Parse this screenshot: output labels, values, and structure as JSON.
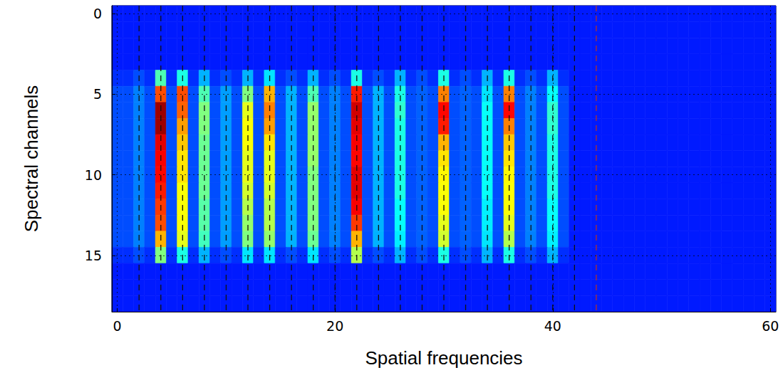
{
  "chart_data": {
    "type": "heatmap",
    "x_label": "Spatial frequencies",
    "y_label": "Spectral channels",
    "xlim": [
      -0.5,
      60.5
    ],
    "xticks": [
      0,
      20,
      40,
      60
    ],
    "ylim": [
      -0.5,
      18.5
    ],
    "yticks": [
      0,
      5,
      10,
      15
    ],
    "grid": true,
    "zlim": [
      0,
      1
    ],
    "x": [
      0,
      1,
      2,
      3,
      4,
      5,
      6,
      7,
      8,
      9,
      10,
      11,
      12,
      13,
      14,
      15,
      16,
      17,
      18,
      19,
      20,
      21,
      22,
      23,
      24,
      25,
      26,
      27,
      28,
      29,
      30,
      31,
      32,
      33,
      34,
      35,
      36,
      37,
      38,
      39,
      40,
      41,
      42,
      43,
      44,
      45,
      46,
      47,
      48,
      49,
      50,
      51,
      52,
      53,
      54,
      55,
      56,
      57,
      58,
      59,
      60
    ],
    "y": [
      0,
      1,
      2,
      3,
      4,
      5,
      6,
      7,
      8,
      9,
      10,
      11,
      12,
      13,
      14,
      15,
      16,
      17,
      18
    ],
    "cells": [
      [
        0.15,
        0.15,
        0.15,
        0.15,
        0.15,
        0.15,
        0.15,
        0.15,
        0.15,
        0.15,
        0.15,
        0.15,
        0.15,
        0.15,
        0.15,
        0.15,
        0.15,
        0.15,
        0.15,
        0.15,
        0.15,
        0.15,
        0.15,
        0.15,
        0.15,
        0.15,
        0.15,
        0.15,
        0.15,
        0.15,
        0.15,
        0.15,
        0.15,
        0.15,
        0.15,
        0.15,
        0.15,
        0.15,
        0.15,
        0.15,
        0.15,
        0.15,
        0.15,
        0.15,
        0.15,
        0.15,
        0.15,
        0.15,
        0.15,
        0.15,
        0.15,
        0.15,
        0.15,
        0.15,
        0.15,
        0.15,
        0.15,
        0.15,
        0.15,
        0.15,
        0.15
      ],
      [
        0.15,
        0.15,
        0.15,
        0.15,
        0.15,
        0.15,
        0.15,
        0.15,
        0.15,
        0.15,
        0.15,
        0.15,
        0.15,
        0.15,
        0.15,
        0.15,
        0.15,
        0.15,
        0.15,
        0.15,
        0.15,
        0.15,
        0.15,
        0.15,
        0.15,
        0.15,
        0.15,
        0.15,
        0.15,
        0.15,
        0.15,
        0.15,
        0.15,
        0.15,
        0.15,
        0.15,
        0.15,
        0.15,
        0.15,
        0.15,
        0.15,
        0.15,
        0.15,
        0.15,
        0.15,
        0.15,
        0.15,
        0.15,
        0.15,
        0.15,
        0.15,
        0.15,
        0.15,
        0.15,
        0.15,
        0.15,
        0.15,
        0.15,
        0.15,
        0.15,
        0.15
      ],
      [
        0.15,
        0.15,
        0.15,
        0.15,
        0.15,
        0.15,
        0.15,
        0.15,
        0.15,
        0.15,
        0.15,
        0.15,
        0.15,
        0.15,
        0.15,
        0.15,
        0.15,
        0.15,
        0.15,
        0.15,
        0.15,
        0.15,
        0.15,
        0.15,
        0.15,
        0.15,
        0.15,
        0.15,
        0.15,
        0.15,
        0.15,
        0.15,
        0.15,
        0.15,
        0.15,
        0.15,
        0.15,
        0.15,
        0.15,
        0.15,
        0.15,
        0.15,
        0.15,
        0.15,
        0.15,
        0.15,
        0.15,
        0.15,
        0.15,
        0.15,
        0.15,
        0.15,
        0.15,
        0.15,
        0.15,
        0.15,
        0.15,
        0.15,
        0.15,
        0.15,
        0.15
      ],
      [
        0.15,
        0.15,
        0.15,
        0.15,
        0.15,
        0.15,
        0.15,
        0.15,
        0.15,
        0.15,
        0.15,
        0.15,
        0.15,
        0.15,
        0.15,
        0.15,
        0.15,
        0.15,
        0.15,
        0.15,
        0.15,
        0.15,
        0.15,
        0.15,
        0.15,
        0.15,
        0.15,
        0.15,
        0.15,
        0.15,
        0.15,
        0.15,
        0.15,
        0.15,
        0.15,
        0.15,
        0.15,
        0.15,
        0.15,
        0.15,
        0.15,
        0.15,
        0.15,
        0.15,
        0.15,
        0.15,
        0.15,
        0.15,
        0.15,
        0.15,
        0.15,
        0.15,
        0.15,
        0.15,
        0.15,
        0.15,
        0.15,
        0.15,
        0.15,
        0.15,
        0.15
      ],
      [
        0.17,
        0.17,
        0.2,
        0.17,
        0.45,
        0.17,
        0.4,
        0.17,
        0.3,
        0.17,
        0.2,
        0.17,
        0.3,
        0.17,
        0.35,
        0.17,
        0.2,
        0.17,
        0.3,
        0.17,
        0.2,
        0.17,
        0.4,
        0.17,
        0.2,
        0.17,
        0.3,
        0.17,
        0.2,
        0.17,
        0.4,
        0.17,
        0.2,
        0.17,
        0.3,
        0.17,
        0.4,
        0.17,
        0.2,
        0.17,
        0.3,
        0.17,
        0.15,
        0.15,
        0.15,
        0.15,
        0.15,
        0.15,
        0.15,
        0.15,
        0.15,
        0.15,
        0.15,
        0.15,
        0.15,
        0.15,
        0.15,
        0.15,
        0.15,
        0.15,
        0.15
      ],
      [
        0.2,
        0.2,
        0.25,
        0.2,
        0.8,
        0.2,
        0.8,
        0.2,
        0.45,
        0.2,
        0.28,
        0.2,
        0.5,
        0.2,
        0.7,
        0.2,
        0.3,
        0.2,
        0.45,
        0.2,
        0.25,
        0.2,
        0.85,
        0.2,
        0.3,
        0.2,
        0.4,
        0.2,
        0.22,
        0.2,
        0.75,
        0.2,
        0.22,
        0.2,
        0.35,
        0.2,
        0.75,
        0.2,
        0.25,
        0.2,
        0.38,
        0.2,
        0.15,
        0.15,
        0.15,
        0.15,
        0.15,
        0.15,
        0.15,
        0.15,
        0.15,
        0.15,
        0.15,
        0.15,
        0.15,
        0.15,
        0.15,
        0.15,
        0.15,
        0.15,
        0.15
      ],
      [
        0.2,
        0.2,
        0.25,
        0.2,
        0.97,
        0.2,
        0.78,
        0.2,
        0.5,
        0.2,
        0.28,
        0.2,
        0.6,
        0.2,
        0.75,
        0.2,
        0.3,
        0.2,
        0.52,
        0.2,
        0.25,
        0.2,
        0.92,
        0.2,
        0.3,
        0.2,
        0.42,
        0.2,
        0.22,
        0.2,
        0.87,
        0.2,
        0.22,
        0.2,
        0.38,
        0.2,
        0.87,
        0.2,
        0.25,
        0.2,
        0.42,
        0.2,
        0.15,
        0.15,
        0.15,
        0.15,
        0.15,
        0.15,
        0.15,
        0.15,
        0.15,
        0.15,
        0.15,
        0.15,
        0.15,
        0.15,
        0.15,
        0.15,
        0.15,
        0.15,
        0.15
      ],
      [
        0.2,
        0.2,
        0.25,
        0.2,
        0.97,
        0.2,
        0.72,
        0.2,
        0.5,
        0.2,
        0.28,
        0.2,
        0.62,
        0.2,
        0.72,
        0.2,
        0.3,
        0.2,
        0.52,
        0.2,
        0.25,
        0.2,
        0.9,
        0.2,
        0.3,
        0.2,
        0.4,
        0.2,
        0.22,
        0.2,
        0.85,
        0.2,
        0.22,
        0.2,
        0.38,
        0.2,
        0.75,
        0.2,
        0.25,
        0.2,
        0.42,
        0.2,
        0.15,
        0.15,
        0.15,
        0.15,
        0.15,
        0.15,
        0.15,
        0.15,
        0.15,
        0.15,
        0.15,
        0.15,
        0.15,
        0.15,
        0.15,
        0.15,
        0.15,
        0.15,
        0.15
      ],
      [
        0.2,
        0.2,
        0.25,
        0.2,
        0.9,
        0.2,
        0.68,
        0.2,
        0.48,
        0.2,
        0.28,
        0.2,
        0.62,
        0.2,
        0.65,
        0.2,
        0.3,
        0.2,
        0.52,
        0.2,
        0.25,
        0.2,
        0.88,
        0.2,
        0.3,
        0.2,
        0.4,
        0.2,
        0.22,
        0.2,
        0.7,
        0.2,
        0.22,
        0.2,
        0.38,
        0.2,
        0.68,
        0.2,
        0.25,
        0.2,
        0.4,
        0.2,
        0.15,
        0.15,
        0.15,
        0.15,
        0.15,
        0.15,
        0.15,
        0.15,
        0.15,
        0.15,
        0.15,
        0.15,
        0.15,
        0.15,
        0.15,
        0.15,
        0.15,
        0.15,
        0.15
      ],
      [
        0.2,
        0.2,
        0.25,
        0.2,
        0.88,
        0.2,
        0.65,
        0.2,
        0.48,
        0.2,
        0.28,
        0.2,
        0.6,
        0.2,
        0.6,
        0.2,
        0.3,
        0.2,
        0.52,
        0.2,
        0.25,
        0.2,
        0.87,
        0.2,
        0.3,
        0.2,
        0.4,
        0.2,
        0.22,
        0.2,
        0.65,
        0.2,
        0.22,
        0.2,
        0.38,
        0.2,
        0.65,
        0.2,
        0.25,
        0.2,
        0.4,
        0.2,
        0.15,
        0.15,
        0.15,
        0.15,
        0.15,
        0.15,
        0.15,
        0.15,
        0.15,
        0.15,
        0.15,
        0.15,
        0.15,
        0.15,
        0.15,
        0.15,
        0.15,
        0.15,
        0.15
      ],
      [
        0.2,
        0.2,
        0.25,
        0.2,
        0.87,
        0.2,
        0.65,
        0.2,
        0.48,
        0.2,
        0.28,
        0.2,
        0.6,
        0.2,
        0.6,
        0.2,
        0.3,
        0.2,
        0.5,
        0.2,
        0.25,
        0.2,
        0.9,
        0.2,
        0.3,
        0.2,
        0.4,
        0.2,
        0.22,
        0.2,
        0.63,
        0.2,
        0.22,
        0.2,
        0.38,
        0.2,
        0.63,
        0.2,
        0.25,
        0.2,
        0.4,
        0.2,
        0.15,
        0.15,
        0.15,
        0.15,
        0.15,
        0.15,
        0.15,
        0.15,
        0.15,
        0.15,
        0.15,
        0.15,
        0.15,
        0.15,
        0.15,
        0.15,
        0.15,
        0.15,
        0.15
      ],
      [
        0.2,
        0.2,
        0.25,
        0.2,
        0.85,
        0.2,
        0.62,
        0.2,
        0.48,
        0.2,
        0.28,
        0.2,
        0.58,
        0.2,
        0.58,
        0.2,
        0.3,
        0.2,
        0.5,
        0.2,
        0.25,
        0.2,
        0.9,
        0.2,
        0.3,
        0.2,
        0.4,
        0.2,
        0.22,
        0.2,
        0.62,
        0.2,
        0.22,
        0.2,
        0.38,
        0.2,
        0.62,
        0.2,
        0.25,
        0.2,
        0.4,
        0.2,
        0.15,
        0.15,
        0.15,
        0.15,
        0.15,
        0.15,
        0.15,
        0.15,
        0.15,
        0.15,
        0.15,
        0.15,
        0.15,
        0.15,
        0.15,
        0.15,
        0.15,
        0.15,
        0.15
      ],
      [
        0.2,
        0.2,
        0.25,
        0.2,
        0.82,
        0.2,
        0.62,
        0.2,
        0.46,
        0.2,
        0.28,
        0.2,
        0.55,
        0.2,
        0.55,
        0.2,
        0.3,
        0.2,
        0.5,
        0.2,
        0.25,
        0.2,
        0.88,
        0.2,
        0.3,
        0.2,
        0.38,
        0.2,
        0.22,
        0.2,
        0.62,
        0.2,
        0.22,
        0.2,
        0.36,
        0.2,
        0.62,
        0.2,
        0.25,
        0.2,
        0.38,
        0.2,
        0.15,
        0.15,
        0.15,
        0.15,
        0.15,
        0.15,
        0.15,
        0.15,
        0.15,
        0.15,
        0.15,
        0.15,
        0.15,
        0.15,
        0.15,
        0.15,
        0.15,
        0.15,
        0.15
      ],
      [
        0.2,
        0.2,
        0.25,
        0.2,
        0.8,
        0.2,
        0.62,
        0.2,
        0.46,
        0.2,
        0.28,
        0.2,
        0.52,
        0.2,
        0.55,
        0.2,
        0.3,
        0.2,
        0.5,
        0.2,
        0.25,
        0.2,
        0.82,
        0.2,
        0.3,
        0.2,
        0.38,
        0.2,
        0.22,
        0.2,
        0.6,
        0.2,
        0.22,
        0.2,
        0.36,
        0.2,
        0.6,
        0.2,
        0.25,
        0.2,
        0.38,
        0.2,
        0.15,
        0.15,
        0.15,
        0.15,
        0.15,
        0.15,
        0.15,
        0.15,
        0.15,
        0.15,
        0.15,
        0.15,
        0.15,
        0.15,
        0.15,
        0.15,
        0.15,
        0.15,
        0.15
      ],
      [
        0.2,
        0.2,
        0.25,
        0.2,
        0.7,
        0.2,
        0.6,
        0.2,
        0.44,
        0.2,
        0.28,
        0.2,
        0.5,
        0.2,
        0.52,
        0.2,
        0.3,
        0.2,
        0.48,
        0.2,
        0.25,
        0.2,
        0.7,
        0.2,
        0.3,
        0.2,
        0.36,
        0.2,
        0.22,
        0.2,
        0.58,
        0.2,
        0.22,
        0.2,
        0.35,
        0.2,
        0.55,
        0.2,
        0.25,
        0.2,
        0.36,
        0.2,
        0.15,
        0.15,
        0.15,
        0.15,
        0.15,
        0.15,
        0.15,
        0.15,
        0.15,
        0.15,
        0.15,
        0.15,
        0.15,
        0.15,
        0.15,
        0.15,
        0.15,
        0.15,
        0.15
      ],
      [
        0.17,
        0.17,
        0.2,
        0.17,
        0.5,
        0.17,
        0.4,
        0.17,
        0.3,
        0.17,
        0.2,
        0.17,
        0.35,
        0.17,
        0.35,
        0.17,
        0.2,
        0.17,
        0.35,
        0.17,
        0.2,
        0.17,
        0.55,
        0.17,
        0.2,
        0.17,
        0.3,
        0.17,
        0.2,
        0.17,
        0.4,
        0.17,
        0.2,
        0.17,
        0.3,
        0.17,
        0.4,
        0.17,
        0.2,
        0.17,
        0.3,
        0.17,
        0.15,
        0.15,
        0.15,
        0.15,
        0.15,
        0.15,
        0.15,
        0.15,
        0.15,
        0.15,
        0.15,
        0.15,
        0.15,
        0.15,
        0.15,
        0.15,
        0.15,
        0.15,
        0.15
      ],
      [
        0.15,
        0.15,
        0.15,
        0.15,
        0.15,
        0.15,
        0.15,
        0.15,
        0.15,
        0.15,
        0.15,
        0.15,
        0.15,
        0.15,
        0.15,
        0.15,
        0.15,
        0.15,
        0.15,
        0.15,
        0.15,
        0.15,
        0.15,
        0.15,
        0.15,
        0.15,
        0.15,
        0.15,
        0.15,
        0.15,
        0.15,
        0.15,
        0.15,
        0.15,
        0.15,
        0.15,
        0.15,
        0.15,
        0.15,
        0.15,
        0.15,
        0.15,
        0.15,
        0.15,
        0.15,
        0.15,
        0.15,
        0.15,
        0.15,
        0.15,
        0.15,
        0.15,
        0.15,
        0.15,
        0.15,
        0.15,
        0.15,
        0.15,
        0.15,
        0.15,
        0.15
      ],
      [
        0.15,
        0.15,
        0.15,
        0.15,
        0.15,
        0.15,
        0.15,
        0.15,
        0.15,
        0.15,
        0.15,
        0.15,
        0.15,
        0.15,
        0.15,
        0.15,
        0.15,
        0.15,
        0.15,
        0.15,
        0.15,
        0.15,
        0.15,
        0.15,
        0.15,
        0.15,
        0.15,
        0.15,
        0.15,
        0.15,
        0.15,
        0.15,
        0.15,
        0.15,
        0.15,
        0.15,
        0.15,
        0.15,
        0.15,
        0.15,
        0.15,
        0.15,
        0.15,
        0.15,
        0.15,
        0.15,
        0.15,
        0.15,
        0.15,
        0.15,
        0.15,
        0.15,
        0.15,
        0.15,
        0.15,
        0.15,
        0.15,
        0.15,
        0.15,
        0.15,
        0.15
      ],
      [
        0.15,
        0.15,
        0.15,
        0.15,
        0.15,
        0.15,
        0.15,
        0.15,
        0.15,
        0.15,
        0.15,
        0.15,
        0.15,
        0.15,
        0.15,
        0.15,
        0.15,
        0.15,
        0.15,
        0.15,
        0.15,
        0.15,
        0.15,
        0.15,
        0.15,
        0.15,
        0.15,
        0.15,
        0.15,
        0.15,
        0.15,
        0.15,
        0.15,
        0.15,
        0.15,
        0.15,
        0.15,
        0.15,
        0.15,
        0.15,
        0.15,
        0.15,
        0.15,
        0.15,
        0.15,
        0.15,
        0.15,
        0.15,
        0.15,
        0.15,
        0.15,
        0.15,
        0.15,
        0.15,
        0.15,
        0.15,
        0.15,
        0.15,
        0.15,
        0.15,
        0.15
      ]
    ],
    "lines": [
      {
        "x": [
          2,
          4,
          6,
          8,
          10,
          12,
          14,
          16,
          18,
          20,
          22,
          24,
          26,
          28,
          30,
          32,
          34,
          36,
          38,
          40,
          42
        ],
        "color": "#111111",
        "line_style": "dashed"
      },
      {
        "x": [
          44
        ],
        "color": "#b03030",
        "line_style": "dashed"
      }
    ]
  }
}
